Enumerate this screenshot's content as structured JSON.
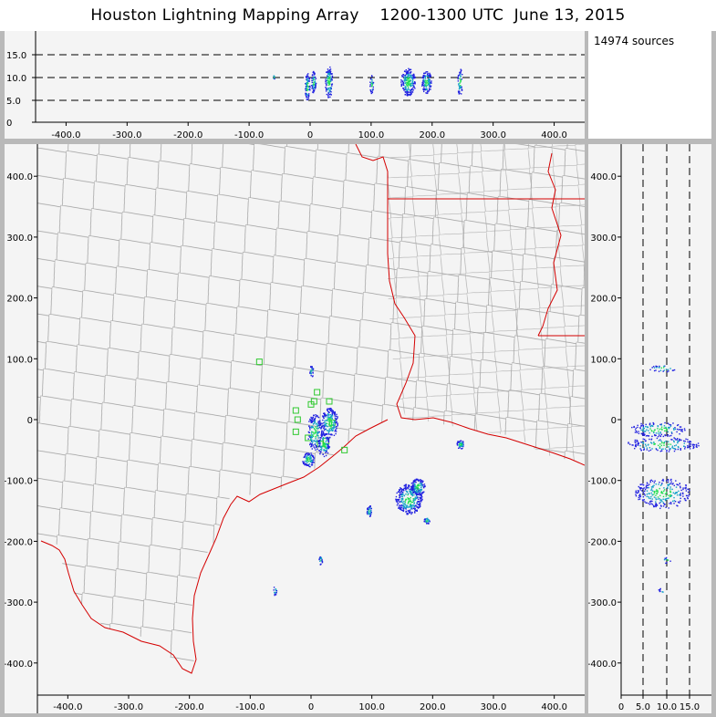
{
  "title": "Houston Lightning Mapping Array    1200-1300 UTC  June 13, 2015",
  "source_count": "14974 sources",
  "x_ticks": [
    "-400.0",
    "-300.0",
    "-200.0",
    "-100.0",
    "0",
    "100.0",
    "200.0",
    "300.0",
    "400.0"
  ],
  "y_ticks": [
    "400.0",
    "300.0",
    "200.0",
    "100.0",
    "0",
    "-100.0",
    "-200.0",
    "-300.0",
    "-400.0"
  ],
  "alt_ticks": [
    "15.0",
    "10.0",
    "5.0",
    "0"
  ],
  "alt_x_ticks": [
    "0",
    "5.0",
    "10.0",
    "15.0"
  ],
  "colors": {
    "state_border": "#d40000",
    "county_lines": "#909090",
    "station_marker": "#2ec82e",
    "low_density": "#2020e0",
    "mid_density": "#10a0c8",
    "high_density": "#20e050"
  }
}
